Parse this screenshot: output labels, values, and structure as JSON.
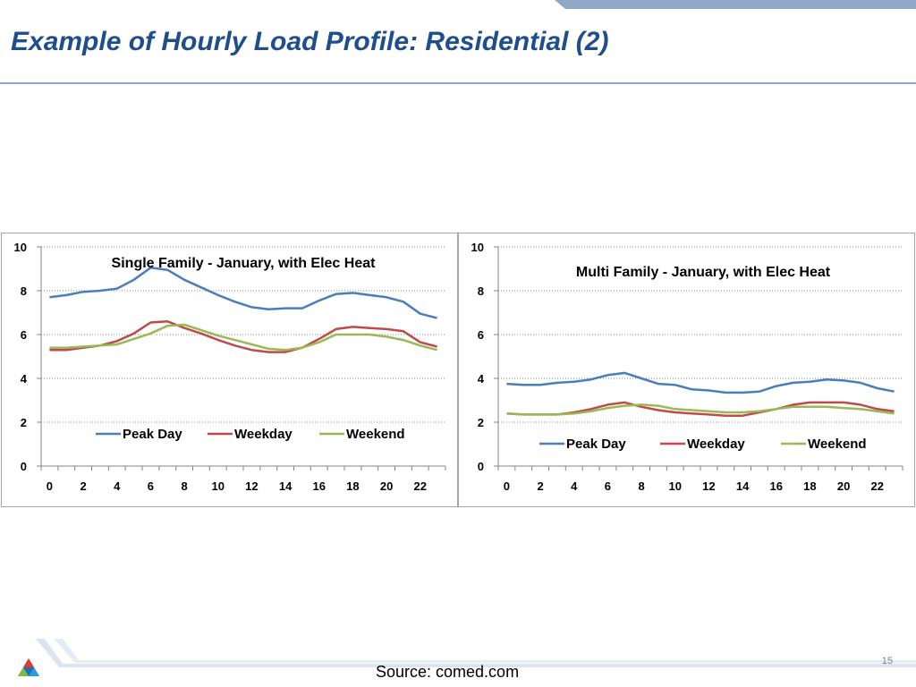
{
  "slide": {
    "title": "Example of Hourly Load Profile:  Residential (2)",
    "source": "Source:  comed.com",
    "page_number": "15",
    "colors": {
      "title": "#1f4e8c",
      "rule": "#8fa9c9"
    }
  },
  "chart_data": [
    {
      "type": "line",
      "title": "Single Family - January, with Elec Heat",
      "x": [
        0,
        1,
        2,
        3,
        4,
        5,
        6,
        7,
        8,
        9,
        10,
        11,
        12,
        13,
        14,
        15,
        16,
        17,
        18,
        19,
        20,
        21,
        22,
        23
      ],
      "x_tick_labels": [
        "0",
        "2",
        "4",
        "6",
        "8",
        "10",
        "12",
        "14",
        "16",
        "18",
        "20",
        "22"
      ],
      "y_tick_labels": [
        "0",
        "2",
        "4",
        "6",
        "8",
        "10"
      ],
      "ylim": [
        0,
        10
      ],
      "grid": "horizontal-dotted",
      "legend_position": "lower-center",
      "series": [
        {
          "name": "Peak Day",
          "color": "#4a7ebb",
          "values": [
            7.7,
            7.8,
            7.95,
            8.0,
            8.1,
            8.5,
            9.05,
            8.95,
            8.5,
            8.15,
            7.8,
            7.5,
            7.25,
            7.15,
            7.2,
            7.2,
            7.55,
            7.85,
            7.9,
            7.8,
            7.7,
            7.5,
            6.95,
            6.75
          ]
        },
        {
          "name": "Weekday",
          "color": "#be4b48",
          "values": [
            5.3,
            5.3,
            5.4,
            5.5,
            5.7,
            6.05,
            6.55,
            6.6,
            6.3,
            6.05,
            5.75,
            5.5,
            5.3,
            5.2,
            5.2,
            5.4,
            5.8,
            6.25,
            6.35,
            6.3,
            6.25,
            6.15,
            5.65,
            5.45
          ]
        },
        {
          "name": "Weekend",
          "color": "#98b954",
          "values": [
            5.4,
            5.4,
            5.45,
            5.5,
            5.55,
            5.8,
            6.05,
            6.4,
            6.45,
            6.2,
            5.95,
            5.75,
            5.55,
            5.35,
            5.3,
            5.4,
            5.65,
            6.0,
            6.0,
            6.0,
            5.9,
            5.75,
            5.5,
            5.3
          ]
        }
      ]
    },
    {
      "type": "line",
      "title": "Multi Family - January, with Elec Heat",
      "x": [
        0,
        1,
        2,
        3,
        4,
        5,
        6,
        7,
        8,
        9,
        10,
        11,
        12,
        13,
        14,
        15,
        16,
        17,
        18,
        19,
        20,
        21,
        22,
        23
      ],
      "x_tick_labels": [
        "0",
        "2",
        "4",
        "6",
        "8",
        "10",
        "12",
        "14",
        "16",
        "18",
        "20",
        "22"
      ],
      "y_tick_labels": [
        "0",
        "2",
        "4",
        "6",
        "8",
        "10"
      ],
      "ylim": [
        0,
        10
      ],
      "grid": "horizontal-dotted",
      "legend_position": "lower-center",
      "series": [
        {
          "name": "Peak Day",
          "color": "#4a7ebb",
          "values": [
            3.75,
            3.7,
            3.7,
            3.8,
            3.85,
            3.95,
            4.15,
            4.25,
            4.0,
            3.75,
            3.7,
            3.5,
            3.45,
            3.35,
            3.35,
            3.4,
            3.65,
            3.8,
            3.85,
            3.95,
            3.9,
            3.8,
            3.55,
            3.4
          ]
        },
        {
          "name": "Weekday",
          "color": "#be4b48",
          "values": [
            2.4,
            2.35,
            2.35,
            2.35,
            2.45,
            2.6,
            2.8,
            2.9,
            2.7,
            2.55,
            2.45,
            2.4,
            2.35,
            2.3,
            2.3,
            2.45,
            2.6,
            2.8,
            2.9,
            2.9,
            2.9,
            2.8,
            2.6,
            2.5
          ]
        },
        {
          "name": "Weekend",
          "color": "#98b954",
          "values": [
            2.4,
            2.35,
            2.35,
            2.35,
            2.4,
            2.5,
            2.65,
            2.75,
            2.8,
            2.75,
            2.6,
            2.55,
            2.5,
            2.45,
            2.45,
            2.5,
            2.6,
            2.7,
            2.7,
            2.7,
            2.65,
            2.6,
            2.5,
            2.4
          ]
        }
      ]
    }
  ]
}
